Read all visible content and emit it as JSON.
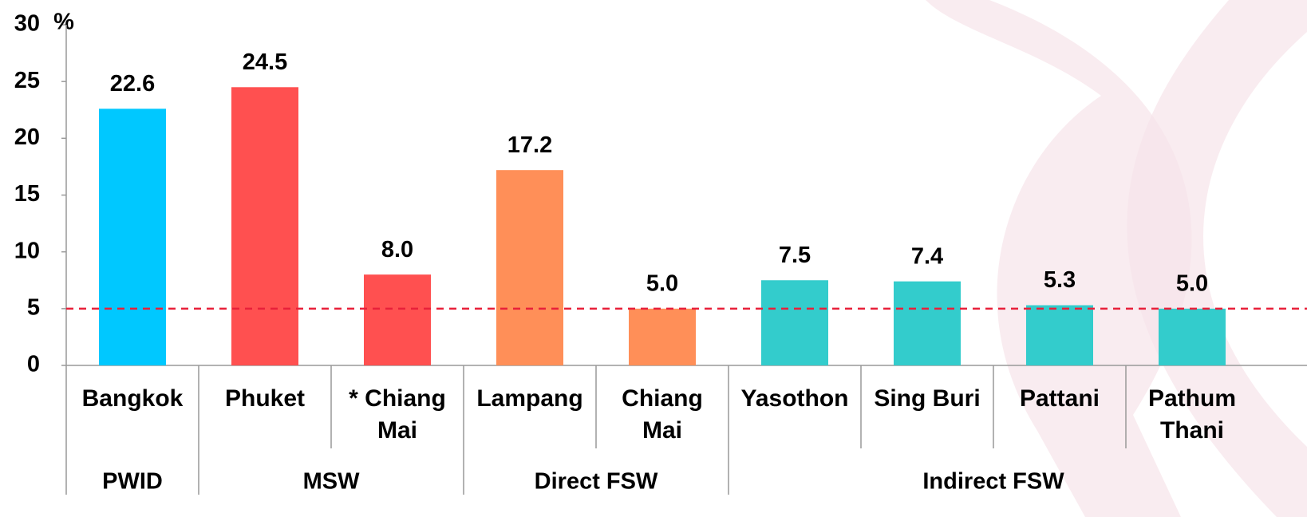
{
  "chart_data": {
    "type": "bar",
    "y_unit": "%",
    "categories": [
      "Bangkok",
      "Phuket",
      "* Chiang Mai",
      "Lampang",
      "Chiang Mai",
      "Yasothon",
      "Sing Buri",
      "Pattani",
      "Pathum Thani"
    ],
    "groups": [
      "PWID",
      "MSW",
      "MSW",
      "Direct FSW",
      "Direct FSW",
      "Indirect FSW",
      "Indirect FSW",
      "Indirect FSW",
      "Indirect FSW"
    ],
    "values": [
      22.6,
      24.5,
      8.0,
      17.2,
      5.0,
      7.5,
      7.4,
      5.3,
      5.0
    ],
    "value_labels": [
      "22.6",
      "24.5",
      "8.0",
      "17.2",
      "5.0",
      "7.5",
      "7.4",
      "5.3",
      "5.0"
    ],
    "colors": [
      "#00c8ff",
      "#ff5050",
      "#ff5050",
      "#ff8f58",
      "#ff8f58",
      "#33cccc",
      "#33cccc",
      "#33cccc",
      "#33cccc"
    ],
    "ylim": [
      0,
      30
    ],
    "yticks": [
      0,
      5,
      10,
      15,
      20,
      25,
      30
    ],
    "reference_line": {
      "value": 5,
      "color": "#e8203a"
    }
  }
}
